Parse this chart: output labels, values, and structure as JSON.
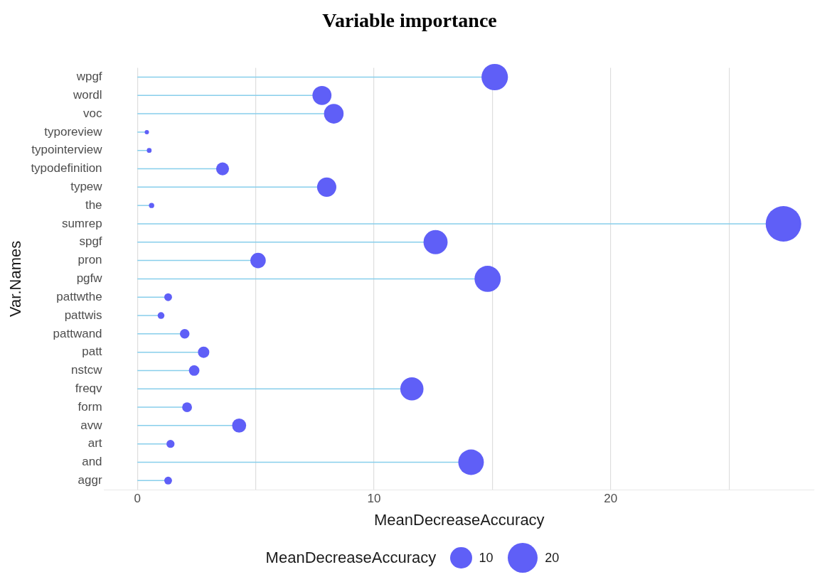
{
  "chart_data": {
    "type": "lollipop",
    "title": "Variable importance",
    "orientation": "horizontal",
    "xlabel": "MeanDecreaseAccuracy",
    "ylabel": "Var.Names",
    "legend_title": "MeanDecreaseAccuracy",
    "categories": [
      "wpgf",
      "wordl",
      "voc",
      "typoreview",
      "typointerview",
      "typodefinition",
      "typew",
      "the",
      "sumrep",
      "spgf",
      "pron",
      "pgfw",
      "pattwthe",
      "pattwis",
      "pattwand",
      "patt",
      "nstcw",
      "freqv",
      "form",
      "avw",
      "art",
      "and",
      "aggr"
    ],
    "values": [
      15.1,
      7.8,
      8.3,
      0.4,
      0.5,
      3.6,
      8.0,
      0.6,
      27.3,
      12.6,
      5.1,
      14.8,
      1.3,
      1.0,
      2.0,
      2.8,
      2.4,
      11.6,
      2.1,
      4.3,
      1.4,
      14.1,
      1.3
    ],
    "sizes": [
      15.1,
      7.8,
      8.3,
      0.4,
      0.5,
      3.6,
      8.0,
      0.6,
      27.3,
      12.6,
      5.1,
      14.8,
      1.3,
      1.0,
      2.0,
      2.8,
      2.4,
      11.6,
      2.1,
      4.3,
      1.4,
      14.1,
      1.3
    ],
    "size_legend": [
      10,
      20
    ],
    "color": "#5f5ff7",
    "marker": "circle",
    "xlim": [
      -1.4,
      28.6
    ],
    "xticks": [
      0,
      {
        "value": 5,
        "label": null
      },
      10,
      {
        "value": 15,
        "label": null
      },
      20,
      {
        "value": 25,
        "label": null
      }
    ],
    "grid": "x"
  }
}
